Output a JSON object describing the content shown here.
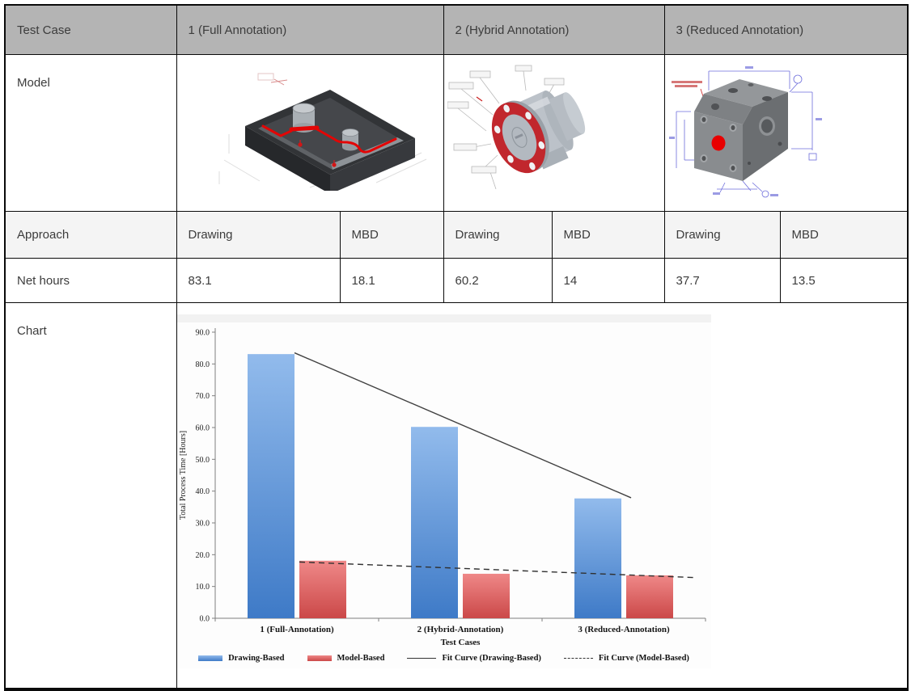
{
  "table": {
    "header_bg": "#b4b4b4",
    "subheader_bg": "#f4f4f4",
    "rows": {
      "test_case": {
        "label": "Test Case",
        "cases": [
          "1 (Full Annotation)",
          "2 (Hybrid Annotation)",
          "3 (Reduced Annotation)"
        ]
      },
      "model": {
        "label": "Model",
        "images": [
          "cad-model-pocket-plate",
          "cad-model-flange",
          "cad-model-block"
        ]
      },
      "approach": {
        "label": "Approach",
        "values": [
          "Drawing",
          "MBD",
          "Drawing",
          "MBD",
          "Drawing",
          "MBD"
        ]
      },
      "net_hours": {
        "label": "Net hours",
        "values": [
          "83.1",
          "18.1",
          "60.2",
          "14",
          "37.7",
          "13.5"
        ]
      },
      "chart": {
        "label": "Chart"
      }
    }
  },
  "chart_data": {
    "type": "bar",
    "categories": [
      "1 (Full-Annotation)",
      "2 (Hybrid-Annotation)",
      "3 (Reduced-Annotation)"
    ],
    "series": [
      {
        "name": "Drawing-Based",
        "values": [
          83.1,
          60.2,
          37.7
        ],
        "color_top": "#92bbec",
        "color_bottom": "#3e7ac7"
      },
      {
        "name": "Model-Based",
        "values": [
          18.1,
          14,
          13.5
        ],
        "color_top": "#ef8888",
        "color_bottom": "#cb4848"
      }
    ],
    "fit_curves": [
      {
        "name": "Fit Curve (Drawing-Based)",
        "style": "solid",
        "start_value": 83.5,
        "end_value": 37.9
      },
      {
        "name": "Fit Curve (Model-Based)",
        "style": "dashed",
        "start_value": 17.7,
        "end_value": 12.8
      }
    ],
    "xlabel": "Test Cases",
    "ylabel": "Total Process Time [Hours]",
    "ylim": [
      0,
      90
    ],
    "ytick_step": 10,
    "grid": false,
    "legend_position": "bottom"
  }
}
